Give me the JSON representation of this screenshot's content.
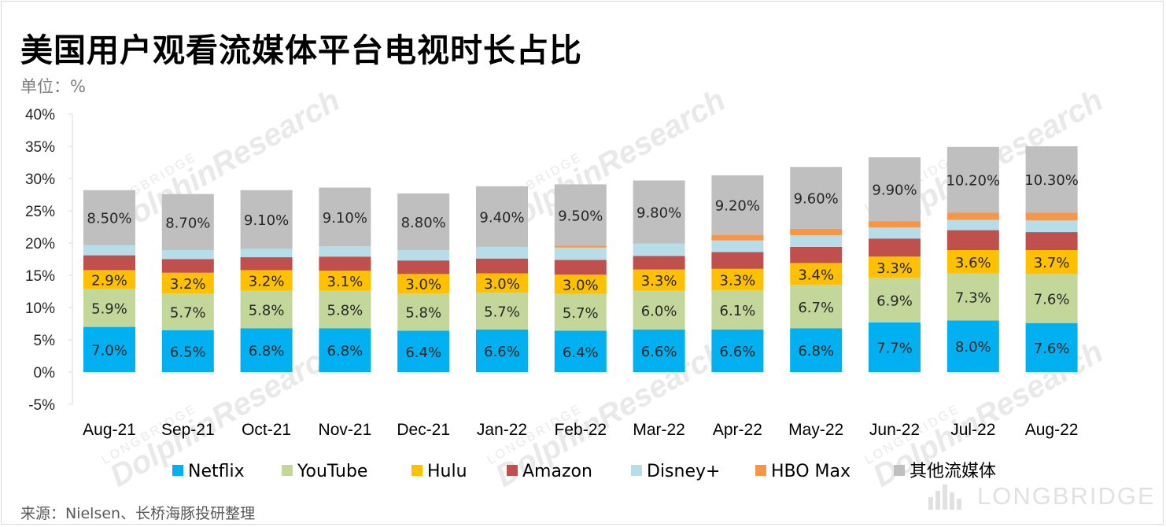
{
  "title": "美国用户观看流媒体平台电视时长占比",
  "unit_label": "单位：%",
  "source": "来源：Nielsen、长桥海豚投研整理",
  "watermark": {
    "brand": "LONGBRIDGE",
    "research": "DolphinResearch"
  },
  "chart_data": {
    "type": "bar",
    "stacked": true,
    "title": "美国用户观看流媒体平台电视时长占比",
    "ylabel": "单位：%",
    "ylim": [
      -5,
      40
    ],
    "yticks": [
      "-5%",
      "0%",
      "5%",
      "10%",
      "15%",
      "20%",
      "25%",
      "30%",
      "35%",
      "40%"
    ],
    "legend_position": "bottom",
    "grid": false,
    "categories": [
      "Aug-21",
      "Sep-21",
      "Oct-21",
      "Nov-21",
      "Dec-21",
      "Jan-22",
      "Feb-22",
      "Mar-22",
      "Apr-22",
      "May-22",
      "Jun-22",
      "Jul-22",
      "Aug-22"
    ],
    "series": [
      {
        "name": "Netflix",
        "color": "#00b0f0",
        "labeled": true,
        "labels": [
          "7.0%",
          "6.5%",
          "6.8%",
          "6.8%",
          "6.4%",
          "6.6%",
          "6.4%",
          "6.6%",
          "6.6%",
          "6.8%",
          "7.7%",
          "8.0%",
          "7.6%"
        ],
        "values": [
          7.0,
          6.5,
          6.8,
          6.8,
          6.4,
          6.6,
          6.4,
          6.6,
          6.6,
          6.8,
          7.7,
          8.0,
          7.6
        ]
      },
      {
        "name": "YouTube",
        "color": "#c4d79b",
        "labeled": true,
        "labels": [
          "5.9%",
          "5.7%",
          "5.8%",
          "5.8%",
          "5.8%",
          "5.7%",
          "5.7%",
          "6.0%",
          "6.1%",
          "6.7%",
          "6.9%",
          "7.3%",
          "7.6%"
        ],
        "values": [
          5.9,
          5.7,
          5.8,
          5.8,
          5.8,
          5.7,
          5.7,
          6.0,
          6.1,
          6.7,
          6.9,
          7.3,
          7.6
        ]
      },
      {
        "name": "Hulu",
        "color": "#ffc000",
        "labeled": true,
        "labels": [
          "2.9%",
          "3.2%",
          "3.2%",
          "3.1%",
          "3.0%",
          "3.0%",
          "3.0%",
          "3.3%",
          "3.3%",
          "3.4%",
          "3.3%",
          "3.6%",
          "3.7%"
        ],
        "values": [
          2.9,
          3.2,
          3.2,
          3.1,
          3.0,
          3.0,
          3.0,
          3.3,
          3.3,
          3.4,
          3.3,
          3.6,
          3.7
        ]
      },
      {
        "name": "Amazon",
        "color": "#c0504d",
        "labeled": false,
        "values": [
          2.3,
          2.1,
          2.0,
          2.2,
          2.1,
          2.3,
          2.3,
          2.1,
          2.6,
          2.5,
          2.8,
          3.1,
          2.8
        ]
      },
      {
        "name": "Disney+",
        "color": "#b7dee8",
        "labeled": false,
        "values": [
          1.6,
          1.4,
          1.3,
          1.6,
          1.6,
          1.8,
          1.9,
          1.9,
          1.8,
          1.8,
          1.7,
          1.6,
          1.8
        ]
      },
      {
        "name": "HBO Max",
        "color": "#f79646",
        "labeled": false,
        "values": [
          0,
          0,
          0,
          0,
          0,
          0,
          0.3,
          0,
          0.9,
          1.0,
          1.0,
          1.1,
          1.2
        ]
      },
      {
        "name": "其他流媒体",
        "color": "#bfbfbf",
        "labeled": true,
        "labels": [
          "8.50%",
          "8.70%",
          "9.10%",
          "9.10%",
          "8.80%",
          "9.40%",
          "9.50%",
          "9.80%",
          "9.20%",
          "9.60%",
          "9.90%",
          "10.20%",
          "10.30%"
        ],
        "values": [
          8.5,
          8.7,
          9.1,
          9.1,
          8.8,
          9.4,
          9.5,
          9.8,
          9.2,
          9.6,
          9.9,
          10.2,
          10.3
        ]
      }
    ]
  }
}
